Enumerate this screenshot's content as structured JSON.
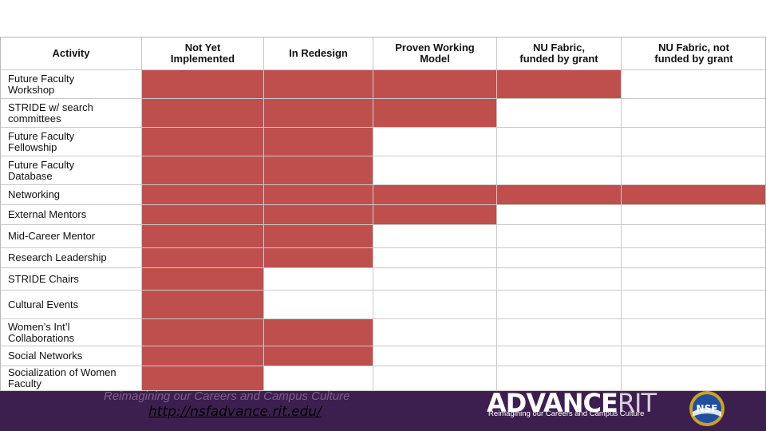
{
  "table": {
    "headers": [
      "Activity",
      "Not Yet\nImplemented",
      "In Redesign",
      "Proven Working\nModel",
      "NU Fabric,\nfunded by grant",
      "NU Fabric, not\nfunded by grant"
    ],
    "rows": [
      {
        "label": "Future Faculty\nWorkshop",
        "filled": [
          true,
          true,
          true,
          true,
          false
        ]
      },
      {
        "label": "STRIDE w/ search\ncommittees",
        "filled": [
          true,
          true,
          true,
          false,
          false
        ]
      },
      {
        "label": "Future Faculty\nFellowship",
        "filled": [
          true,
          true,
          false,
          false,
          false
        ]
      },
      {
        "label": "Future Faculty\nDatabase",
        "filled": [
          true,
          true,
          false,
          false,
          false
        ]
      },
      {
        "label": "Networking",
        "filled": [
          true,
          true,
          true,
          true,
          true
        ]
      },
      {
        "label": "External Mentors",
        "filled": [
          true,
          true,
          true,
          false,
          false
        ]
      },
      {
        "label": "Mid-Career Mentor",
        "filled": [
          true,
          true,
          false,
          false,
          false
        ]
      },
      {
        "label": "Research Leadership",
        "filled": [
          true,
          true,
          false,
          false,
          false
        ]
      },
      {
        "label": "STRIDE Chairs",
        "filled": [
          true,
          false,
          false,
          false,
          false
        ]
      },
      {
        "label": "Cultural Events",
        "filled": [
          true,
          false,
          false,
          false,
          false
        ]
      },
      {
        "label": "Women’s Int’l\nCollaborations",
        "filled": [
          true,
          true,
          false,
          false,
          false
        ]
      },
      {
        "label": "Social Networks",
        "filled": [
          true,
          true,
          false,
          false,
          false
        ]
      },
      {
        "label": "Socialization of Women\nFaculty",
        "filled": [
          true,
          false,
          false,
          false,
          false
        ]
      }
    ]
  },
  "footer": {
    "tagline": "Reimagining our Careers and Campus Culture",
    "link": "http://nsfadvance.rit.edu/",
    "logo_word": "ADVANCE",
    "logo_suffix": "RIT",
    "logo_sub": "Reimagining our Careers and Campus Culture",
    "nsf_label": "NSF"
  },
  "colors": {
    "filled_cell": "#bf4f4c",
    "footer_band": "#3d1f4f"
  }
}
